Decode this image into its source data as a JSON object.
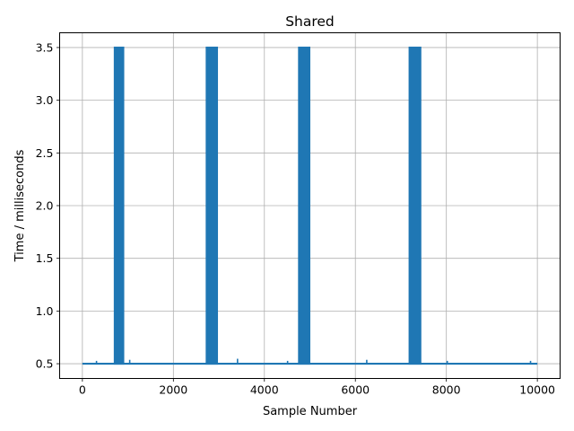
{
  "chart_data": {
    "type": "line",
    "title": "Shared",
    "xlabel": "Sample Number",
    "ylabel": "Time / milliseconds",
    "xlim": [
      -500,
      10500
    ],
    "ylim": [
      0.36,
      3.64
    ],
    "xticks": [
      0,
      2000,
      4000,
      6000,
      8000,
      10000
    ],
    "xtick_labels": [
      "0",
      "2000",
      "4000",
      "6000",
      "8000",
      "10000"
    ],
    "yticks": [
      0.5,
      1.0,
      1.5,
      2.0,
      2.5,
      3.0,
      3.5
    ],
    "ytick_labels": [
      "0.5",
      "1.0",
      "1.5",
      "2.0",
      "2.5",
      "3.0",
      "3.5"
    ],
    "grid": true,
    "color": "#1f77b4",
    "sample_count": 10000,
    "baseline": 0.5,
    "peak": 3.5,
    "series": [
      {
        "x": [
          0,
          690,
          690,
          920,
          920,
          2710,
          2710,
          2980,
          2980,
          4740,
          4740,
          5010,
          5010,
          7170,
          7170,
          7450,
          7450,
          10000
        ],
        "values": [
          0.5,
          0.5,
          3.5,
          3.5,
          0.5,
          0.5,
          3.5,
          3.5,
          0.5,
          0.5,
          3.5,
          3.5,
          0.5,
          0.5,
          3.5,
          3.5,
          0.5,
          0.5
        ]
      }
    ],
    "oscillation_blocks": [
      {
        "x_start": 690,
        "x_end": 920,
        "low": 0.5,
        "high": 3.5
      },
      {
        "x_start": 2710,
        "x_end": 2980,
        "low": 0.5,
        "high": 3.5
      },
      {
        "x_start": 4740,
        "x_end": 5010,
        "low": 0.5,
        "high": 3.5
      },
      {
        "x_start": 7170,
        "x_end": 7450,
        "low": 0.5,
        "high": 3.5
      }
    ],
    "baseline_spikes": [
      {
        "x": 310,
        "y": 0.51
      },
      {
        "x": 1040,
        "y": 0.52
      },
      {
        "x": 3410,
        "y": 0.53
      },
      {
        "x": 4510,
        "y": 0.51
      },
      {
        "x": 6250,
        "y": 0.52
      },
      {
        "x": 8020,
        "y": 0.51
      },
      {
        "x": 9850,
        "y": 0.51
      }
    ]
  }
}
